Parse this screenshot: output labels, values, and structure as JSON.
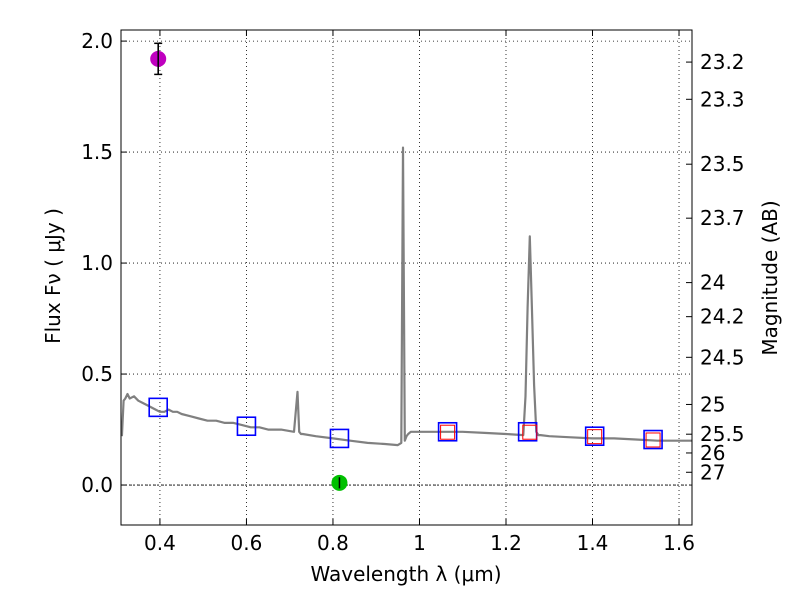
{
  "chart_data": {
    "type": "line",
    "title": "",
    "xlabel": "Wavelength  λ (μm)",
    "ylabel": "Flux  Fν  ( μJy )",
    "y2label": "Magnitude (AB)",
    "xlim": [
      0.31,
      1.63
    ],
    "ylim": [
      -0.18,
      2.05
    ],
    "grid": true,
    "x_ticks": [
      0.4,
      0.6,
      0.8,
      1.0,
      1.2,
      1.4,
      1.6
    ],
    "x_tick_labels": [
      "0.4",
      "0.6",
      "0.8",
      "1",
      "1.2",
      "1.4",
      "1.6"
    ],
    "y_ticks": [
      0.0,
      0.5,
      1.0,
      1.5,
      2.0
    ],
    "y_tick_labels": [
      "0.0",
      "0.5",
      "1.0",
      "1.5",
      "2.0"
    ],
    "mag_ticks": [
      23.2,
      23.3,
      23.5,
      23.7,
      24,
      24.2,
      24.5,
      25,
      25.5,
      26,
      27
    ],
    "mag_tick_labels": [
      "23.2",
      "23.3",
      "23.5",
      "23.7",
      "24",
      "24.2",
      "24.5",
      "25",
      "25.5",
      "26",
      "27"
    ],
    "colors": {
      "spectrum": "#808080",
      "photometry_box": "#0000ff",
      "model_box": "#ff0000",
      "magenta_point": "#bf00bf",
      "green_point": "#00c000"
    },
    "series": [
      {
        "name": "model spectrum",
        "kind": "line",
        "x": [
          0.312,
          0.316,
          0.32,
          0.325,
          0.33,
          0.34,
          0.35,
          0.36,
          0.37,
          0.38,
          0.39,
          0.4,
          0.41,
          0.42,
          0.43,
          0.44,
          0.45,
          0.47,
          0.49,
          0.51,
          0.53,
          0.55,
          0.57,
          0.59,
          0.61,
          0.63,
          0.65,
          0.68,
          0.71,
          0.718,
          0.722,
          0.726,
          0.73,
          0.76,
          0.8,
          0.84,
          0.88,
          0.92,
          0.95,
          0.958,
          0.962,
          0.966,
          0.97,
          0.974,
          0.98,
          1.0,
          1.05,
          1.1,
          1.15,
          1.2,
          1.24,
          1.245,
          1.25,
          1.255,
          1.26,
          1.265,
          1.27,
          1.275,
          1.28,
          1.3,
          1.35,
          1.4,
          1.45,
          1.5,
          1.55,
          1.6,
          1.63
        ],
        "y": [
          0.22,
          0.38,
          0.39,
          0.41,
          0.39,
          0.4,
          0.38,
          0.37,
          0.36,
          0.35,
          0.34,
          0.33,
          0.33,
          0.34,
          0.33,
          0.33,
          0.32,
          0.31,
          0.3,
          0.29,
          0.29,
          0.28,
          0.28,
          0.27,
          0.26,
          0.26,
          0.25,
          0.25,
          0.24,
          0.42,
          0.24,
          0.23,
          0.23,
          0.22,
          0.21,
          0.2,
          0.19,
          0.185,
          0.18,
          0.19,
          1.52,
          0.2,
          0.22,
          0.23,
          0.24,
          0.24,
          0.24,
          0.24,
          0.235,
          0.23,
          0.225,
          0.4,
          0.8,
          1.12,
          0.8,
          0.45,
          0.24,
          0.225,
          0.225,
          0.22,
          0.215,
          0.21,
          0.21,
          0.205,
          0.2,
          0.2,
          0.2
        ]
      },
      {
        "name": "photometry",
        "kind": "boxes",
        "x": [
          0.396,
          0.6,
          0.815,
          1.065,
          1.25,
          1.405,
          1.54
        ],
        "y": [
          0.35,
          0.265,
          0.21,
          0.24,
          0.24,
          0.22,
          0.205
        ]
      },
      {
        "name": "model photometry",
        "kind": "boxes",
        "x": [
          1.065,
          1.255,
          1.405,
          1.54
        ],
        "y": [
          0.238,
          0.238,
          0.218,
          0.203
        ]
      },
      {
        "name": "magenta point",
        "kind": "point",
        "x": [
          0.396
        ],
        "y": [
          1.92
        ],
        "yerr": [
          0.07
        ]
      },
      {
        "name": "green point",
        "kind": "point",
        "x": [
          0.815
        ],
        "y": [
          0.01
        ],
        "yerr": [
          0.025
        ]
      }
    ]
  }
}
